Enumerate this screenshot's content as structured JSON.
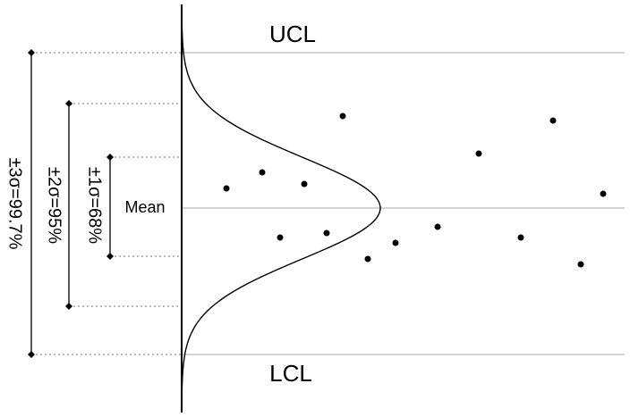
{
  "labels": {
    "ucl": "UCL",
    "lcl": "LCL",
    "mean": "Mean",
    "sigma3": "±3σ=99.7%",
    "sigma2": "±2σ=95%",
    "sigma1": "±1σ=68%"
  }
}
